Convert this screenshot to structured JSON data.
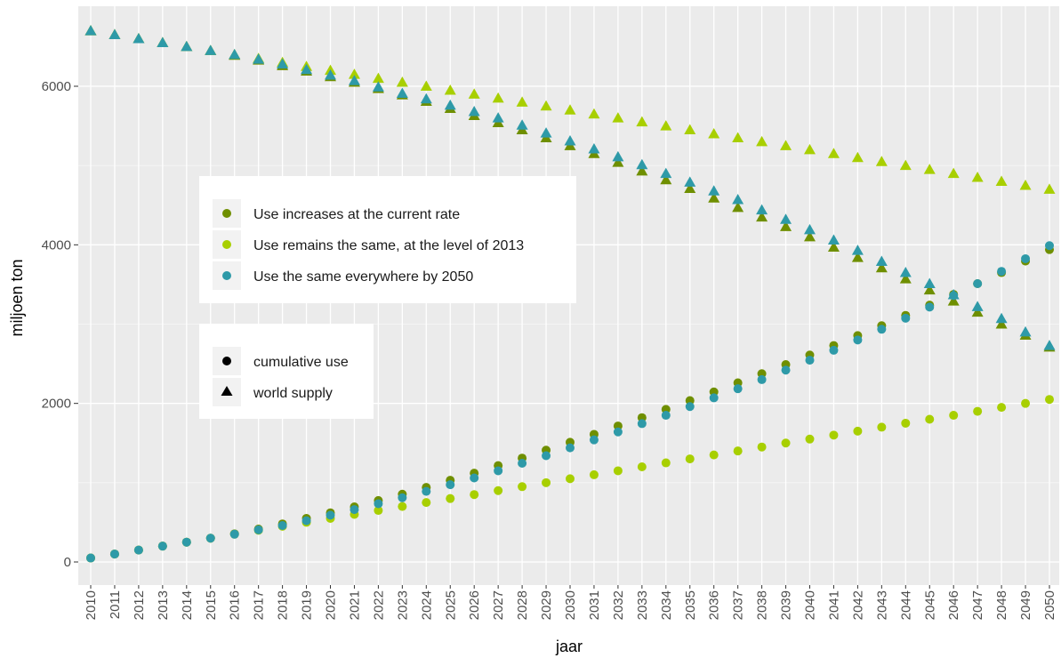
{
  "chart_data": {
    "type": "scatter",
    "title": "",
    "xlabel": "jaar",
    "ylabel": "miljoen ton",
    "x": [
      2010,
      2011,
      2012,
      2013,
      2014,
      2015,
      2016,
      2017,
      2018,
      2019,
      2020,
      2021,
      2022,
      2023,
      2024,
      2025,
      2026,
      2027,
      2028,
      2029,
      2030,
      2031,
      2032,
      2033,
      2034,
      2035,
      2036,
      2037,
      2038,
      2039,
      2040,
      2041,
      2042,
      2043,
      2044,
      2045,
      2046,
      2047,
      2048,
      2049,
      2050
    ],
    "x_tick_labels": [
      "2010",
      "2011",
      "2012",
      "2013",
      "2014",
      "2015",
      "2016",
      "2017",
      "2018",
      "2019",
      "2020",
      "2021",
      "2022",
      "2023",
      "2024",
      "2025",
      "2026",
      "2027",
      "2028",
      "2029",
      "2030",
      "2031",
      "2032",
      "2033",
      "2034",
      "2035",
      "2036",
      "2037",
      "2038",
      "2039",
      "2040",
      "2041",
      "2042",
      "2043",
      "2044",
      "2045",
      "2046",
      "2047",
      "2048",
      "2049",
      "2050"
    ],
    "y_ticks": [
      0,
      2000,
      4000,
      6000
    ],
    "y_tick_labels": [
      "0",
      "2000",
      "4000",
      "6000"
    ],
    "ylim": [
      -200,
      6900
    ],
    "grid": true,
    "series": [
      {
        "name": "Use increases at the current rate",
        "color": "#6f8f00",
        "cumulative_use": [
          50,
          100,
          150,
          200,
          250,
          300,
          355,
          415,
          480,
          550,
          620,
          695,
          775,
          855,
          940,
          1030,
          1120,
          1215,
          1310,
          1410,
          1510,
          1610,
          1715,
          1820,
          1925,
          2035,
          2145,
          2260,
          2375,
          2490,
          2610,
          2730,
          2855,
          2980,
          3110,
          3240,
          3375,
          3510,
          3650,
          3795,
          3940
        ],
        "world_supply": [
          6700,
          6650,
          6600,
          6550,
          6500,
          6450,
          6390,
          6330,
          6260,
          6190,
          6120,
          6050,
          5970,
          5890,
          5810,
          5720,
          5630,
          5540,
          5450,
          5350,
          5250,
          5150,
          5040,
          4930,
          4820,
          4710,
          4590,
          4470,
          4350,
          4230,
          4100,
          3970,
          3840,
          3710,
          3570,
          3430,
          3290,
          3150,
          3000,
          2860,
          2710
        ]
      },
      {
        "name": "Use remains the same, at the level of 2013",
        "color": "#a8cf00",
        "cumulative_use": [
          50,
          100,
          150,
          200,
          250,
          300,
          350,
          400,
          450,
          500,
          550,
          600,
          650,
          700,
          750,
          800,
          850,
          900,
          950,
          1000,
          1050,
          1100,
          1150,
          1200,
          1250,
          1300,
          1350,
          1400,
          1450,
          1500,
          1550,
          1600,
          1650,
          1700,
          1750,
          1800,
          1850,
          1900,
          1950,
          2000,
          2050
        ],
        "world_supply": [
          6700,
          6650,
          6600,
          6550,
          6500,
          6450,
          6400,
          6350,
          6300,
          6250,
          6200,
          6150,
          6100,
          6050,
          6000,
          5950,
          5900,
          5850,
          5800,
          5750,
          5700,
          5650,
          5600,
          5550,
          5500,
          5450,
          5400,
          5350,
          5300,
          5250,
          5200,
          5150,
          5100,
          5050,
          5000,
          4950,
          4900,
          4850,
          4800,
          4750,
          4700
        ]
      },
      {
        "name": "Use the same everywhere by 2050",
        "color": "#2e9aa8",
        "cumulative_use": [
          50,
          100,
          150,
          200,
          250,
          300,
          350,
          405,
          460,
          520,
          590,
          660,
          735,
          810,
          890,
          975,
          1060,
          1150,
          1245,
          1340,
          1440,
          1540,
          1640,
          1745,
          1850,
          1960,
          2070,
          2185,
          2300,
          2420,
          2545,
          2670,
          2800,
          2935,
          3075,
          3215,
          3360,
          3510,
          3665,
          3825,
          3990
        ],
        "world_supply": [
          6700,
          6650,
          6600,
          6550,
          6500,
          6450,
          6400,
          6340,
          6280,
          6210,
          6140,
          6070,
          5990,
          5910,
          5840,
          5760,
          5680,
          5600,
          5510,
          5410,
          5310,
          5210,
          5110,
          5010,
          4900,
          4790,
          4680,
          4570,
          4440,
          4320,
          4190,
          4060,
          3930,
          3790,
          3650,
          3510,
          3370,
          3220,
          3070,
          2900,
          2730
        ]
      }
    ],
    "legend_position": "left, inside plot",
    "shape_legend": [
      {
        "name": "cumulative use",
        "shape": "circle"
      },
      {
        "name": "world supply",
        "shape": "triangle"
      }
    ]
  }
}
